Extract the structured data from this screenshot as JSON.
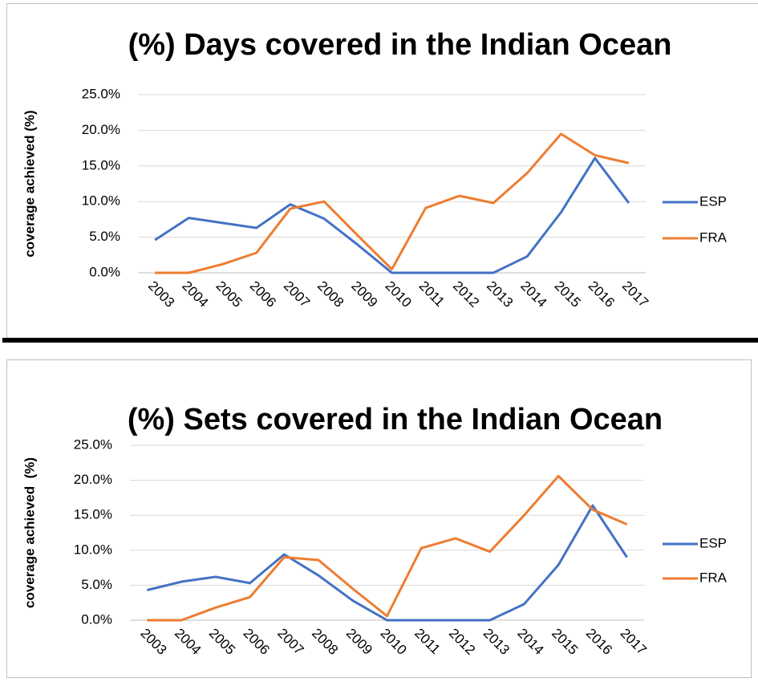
{
  "chart_data": [
    {
      "type": "line",
      "title": "(%) Days covered in the Indian Ocean",
      "y_label": "coverage achieved (%)",
      "categories": [
        "2003",
        "2004",
        "2005",
        "2006",
        "2007",
        "2008",
        "2009",
        "2010",
        "2011",
        "2012",
        "2013",
        "2014",
        "2015",
        "2016",
        "2017"
      ],
      "series": [
        {
          "name": "ESP",
          "color": "#4472c4",
          "values": [
            4.6,
            7.7,
            7.0,
            6.3,
            9.6,
            7.6,
            3.9,
            0,
            0,
            0,
            0,
            2.3,
            8.5,
            16.1,
            9.8
          ]
        },
        {
          "name": "FRA",
          "color": "#ed7d31",
          "values": [
            0,
            0,
            1.2,
            2.8,
            9.0,
            10.0,
            5.2,
            0.5,
            9.1,
            10.8,
            9.8,
            14.0,
            19.5,
            16.5,
            15.4
          ]
        }
      ],
      "ylim": [
        0,
        25
      ],
      "yticks": [
        {
          "value": 0,
          "label": "0.0%"
        },
        {
          "value": 5,
          "label": "5.0%"
        },
        {
          "value": 10,
          "label": "10.0%"
        },
        {
          "value": 15,
          "label": "15.0%"
        },
        {
          "value": 20,
          "label": "20.0%"
        },
        {
          "value": 25,
          "label": "25.0%"
        }
      ],
      "grid": true,
      "legend": "right"
    },
    {
      "type": "line",
      "title": "(%) Sets covered in the Indian Ocean",
      "y_label": "coverage achieved  (%)",
      "categories": [
        "2003",
        "2004",
        "2005",
        "2006",
        "2007",
        "2008",
        "2009",
        "2010",
        "2011",
        "2012",
        "2013",
        "2014",
        "2015",
        "2016",
        "2017"
      ],
      "series": [
        {
          "name": "ESP",
          "color": "#4472c4",
          "values": [
            4.3,
            5.5,
            6.2,
            5.3,
            9.4,
            6.4,
            2.8,
            0,
            0,
            0,
            0,
            2.3,
            7.9,
            16.4,
            9.0
          ]
        },
        {
          "name": "FRA",
          "color": "#ed7d31",
          "values": [
            0,
            0,
            1.8,
            3.3,
            9.0,
            8.6,
            4.5,
            0.6,
            10.3,
            11.7,
            9.8,
            15.0,
            20.6,
            15.8,
            13.7
          ]
        }
      ],
      "ylim": [
        0,
        25
      ],
      "yticks": [
        {
          "value": 0,
          "label": "0.0%"
        },
        {
          "value": 5,
          "label": "5.0%"
        },
        {
          "value": 10,
          "label": "10.0%"
        },
        {
          "value": 15,
          "label": "15.0%"
        },
        {
          "value": 20,
          "label": "20.0%"
        },
        {
          "value": 25,
          "label": "25.0%"
        }
      ],
      "grid": true,
      "legend": "right"
    }
  ]
}
